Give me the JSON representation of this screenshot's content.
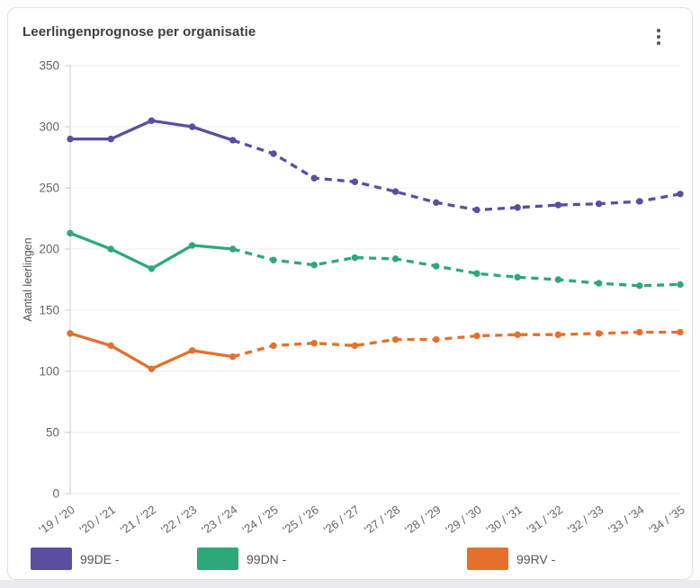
{
  "header": {
    "title": "Leerlingenprognose per organisatie",
    "menu_icon": "kebab-menu"
  },
  "colors": {
    "grid": "#ebebeb",
    "axis": "#c9c9c9",
    "tick_text": "#666666",
    "axis_title_text": "#555555"
  },
  "chart_data": {
    "type": "line",
    "title": "Leerlingenprognose per organisatie",
    "xlabel": "",
    "ylabel": "Aantal leerlingen",
    "ylim": [
      0,
      350
    ],
    "yticks": [
      0,
      50,
      100,
      150,
      200,
      250,
      300,
      350
    ],
    "grid": "horizontal",
    "legend_position": "bottom",
    "line_style": "solid for measured years, dashed for prognosis",
    "solid_until_index": 4,
    "solid_until_category": "'23 / '24",
    "categories": [
      "'19 / '20",
      "'20 / '21",
      "'21 / '22",
      "'22 / '23",
      "'23 / '24",
      "'24 / '25",
      "'25 / '26",
      "'26 / '27",
      "'27 / '28",
      "'28 / '29",
      "'29 / '30",
      "'30 / '31",
      "'31 / '32",
      "'32 / '33",
      "'33 / '34",
      "'34 / '35"
    ],
    "series": [
      {
        "name": "99DE -",
        "color": "#5b4ea1",
        "values": [
          290,
          290,
          305,
          300,
          289,
          278,
          258,
          255,
          247,
          238,
          232,
          234,
          236,
          237,
          239,
          245
        ]
      },
      {
        "name": "99DN -",
        "color": "#2ea87b",
        "values": [
          213,
          200,
          184,
          203,
          200,
          191,
          187,
          193,
          192,
          186,
          180,
          177,
          175,
          172,
          170,
          171
        ]
      },
      {
        "name": "99RV -",
        "color": "#e5702b",
        "values": [
          131,
          121,
          102,
          117,
          112,
          121,
          123,
          121,
          126,
          126,
          129,
          130,
          130,
          131,
          132,
          132
        ]
      }
    ]
  }
}
